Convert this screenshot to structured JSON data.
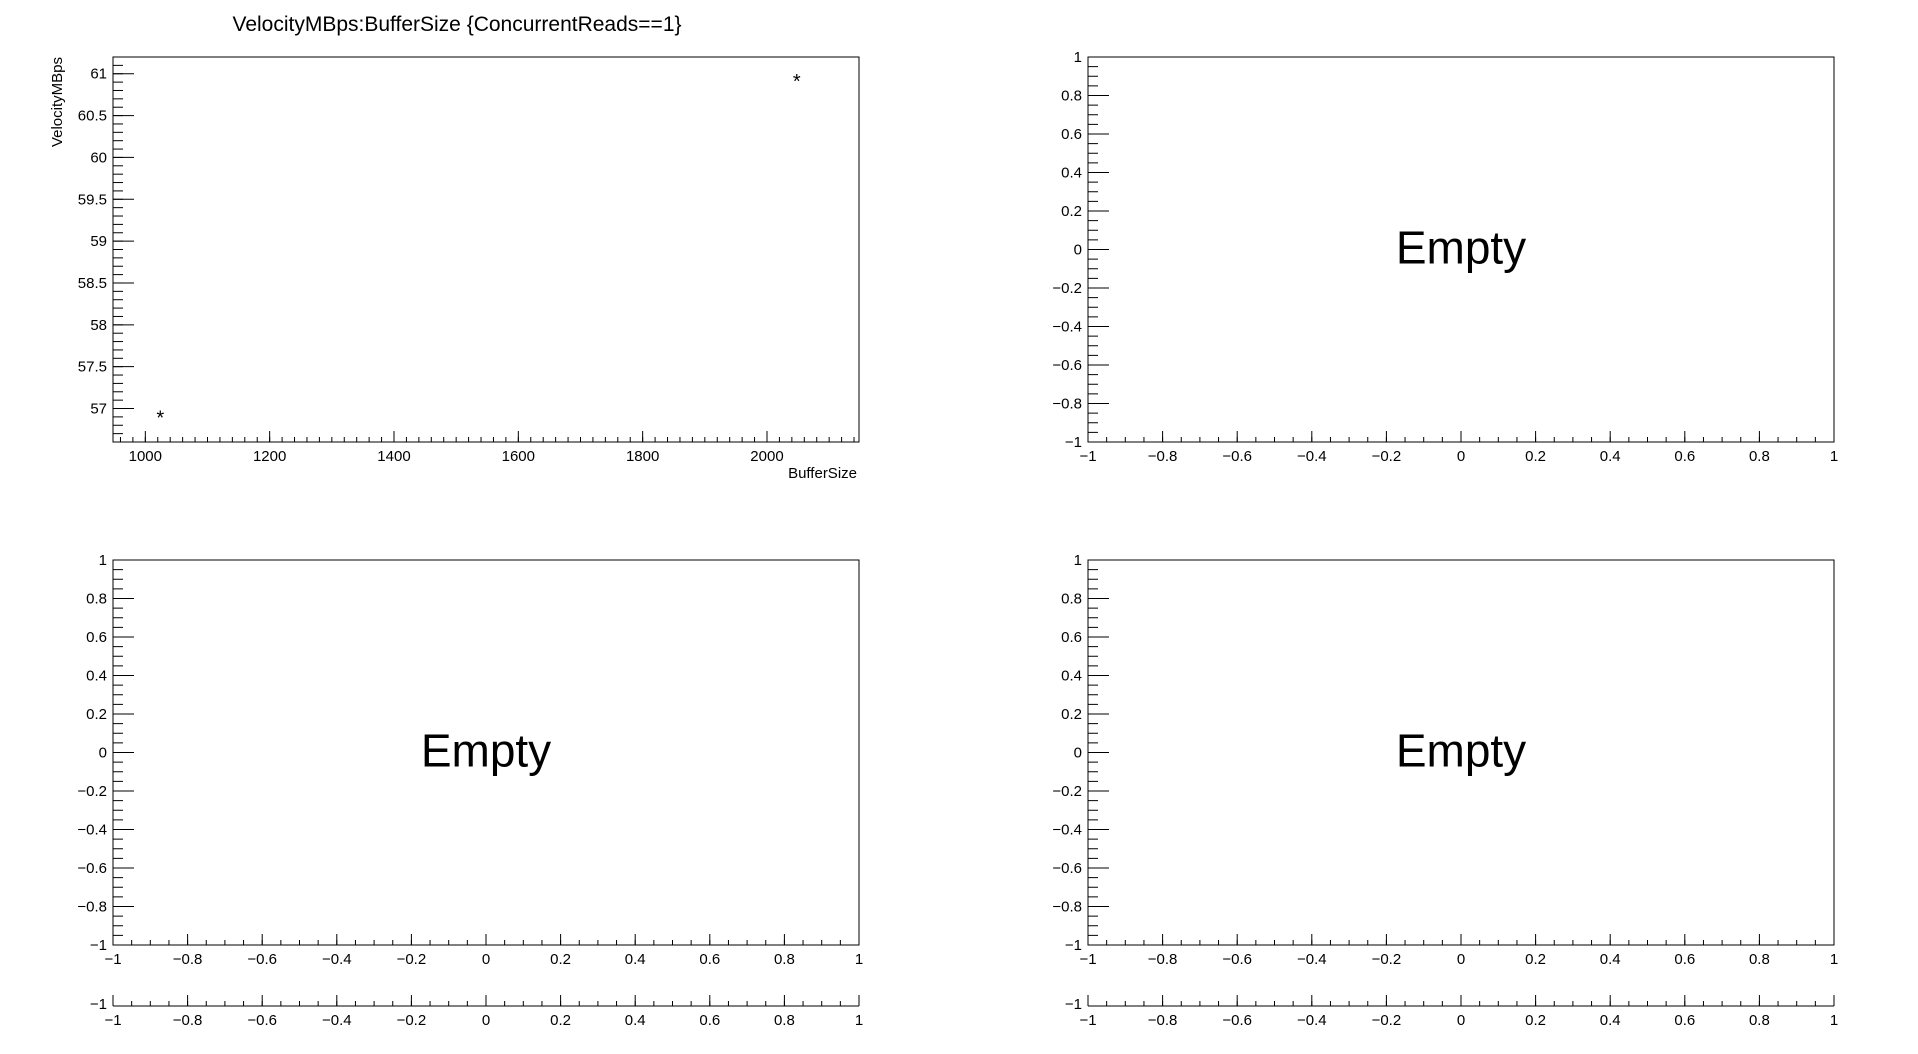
{
  "chart_data": [
    {
      "type": "scatter",
      "title": "VelocityMBps:BufferSize {ConcurrentReads==1}",
      "xlabel": "BufferSize",
      "ylabel": "VelocityMBps",
      "xlim": [
        948,
        2148
      ],
      "ylim": [
        56.6,
        61.2
      ],
      "x_ticks": [
        1000,
        1200,
        1400,
        1600,
        1800,
        2000
      ],
      "x_tick_labels": [
        "1000",
        "1200",
        "1400",
        "1600",
        "1800",
        "2000"
      ],
      "y_ticks": [
        57,
        57.5,
        58,
        58.5,
        59,
        59.5,
        60,
        60.5,
        61
      ],
      "y_tick_labels": [
        "57",
        "57.5",
        "58",
        "58.5",
        "59",
        "59.5",
        "60",
        "60.5",
        "61"
      ],
      "x_minor_step": 20,
      "y_minor_step": 0.1,
      "marker": "*",
      "points": [
        {
          "x": 1024,
          "y": 56.93
        },
        {
          "x": 2048,
          "y": 60.95
        }
      ],
      "empty_label": ""
    },
    {
      "type": "scatter",
      "title": "",
      "xlabel": "",
      "ylabel": "",
      "xlim": [
        -1,
        1
      ],
      "ylim": [
        -1,
        1
      ],
      "x_ticks": [
        -1,
        -0.8,
        -0.6,
        -0.4,
        -0.2,
        0,
        0.2,
        0.4,
        0.6,
        0.8,
        1
      ],
      "x_tick_labels": [
        "−1",
        "−0.8",
        "−0.6",
        "−0.4",
        "−0.2",
        "0",
        "0.2",
        "0.4",
        "0.6",
        "0.8",
        "1"
      ],
      "y_ticks": [
        -1,
        -0.8,
        -0.6,
        -0.4,
        -0.2,
        0,
        0.2,
        0.4,
        0.6,
        0.8,
        1
      ],
      "y_tick_labels": [
        "−1",
        "−0.8",
        "−0.6",
        "−0.4",
        "−0.2",
        "0",
        "0.2",
        "0.4",
        "0.6",
        "0.8",
        "1"
      ],
      "x_minor_step": 0.05,
      "y_minor_step": 0.05,
      "points": [],
      "empty_label": "Empty"
    },
    {
      "type": "scatter",
      "title": "",
      "xlabel": "",
      "ylabel": "",
      "xlim": [
        -1,
        1
      ],
      "ylim": [
        -1,
        1
      ],
      "x_ticks": [
        -1,
        -0.8,
        -0.6,
        -0.4,
        -0.2,
        0,
        0.2,
        0.4,
        0.6,
        0.8,
        1
      ],
      "x_tick_labels": [
        "−1",
        "−0.8",
        "−0.6",
        "−0.4",
        "−0.2",
        "0",
        "0.2",
        "0.4",
        "0.6",
        "0.8",
        "1"
      ],
      "y_ticks": [
        -1,
        -0.8,
        -0.6,
        -0.4,
        -0.2,
        0,
        0.2,
        0.4,
        0.6,
        0.8,
        1
      ],
      "y_tick_labels": [
        "−1",
        "−0.8",
        "−0.6",
        "−0.4",
        "−0.2",
        "0",
        "0.2",
        "0.4",
        "0.6",
        "0.8",
        "1"
      ],
      "x_minor_step": 0.05,
      "y_minor_step": 0.05,
      "points": [],
      "empty_label": "Empty"
    },
    {
      "type": "scatter",
      "title": "",
      "xlabel": "",
      "ylabel": "",
      "xlim": [
        -1,
        1
      ],
      "ylim": [
        -1,
        1
      ],
      "x_ticks": [
        -1,
        -0.8,
        -0.6,
        -0.4,
        -0.2,
        0,
        0.2,
        0.4,
        0.6,
        0.8,
        1
      ],
      "x_tick_labels": [
        "−1",
        "−0.8",
        "−0.6",
        "−0.4",
        "−0.2",
        "0",
        "0.2",
        "0.4",
        "0.6",
        "0.8",
        "1"
      ],
      "y_ticks": [
        -1,
        -0.8,
        -0.6,
        -0.4,
        -0.2,
        0,
        0.2,
        0.4,
        0.6,
        0.8,
        1
      ],
      "y_tick_labels": [
        "−1",
        "−0.8",
        "−0.6",
        "−0.4",
        "−0.2",
        "0",
        "0.2",
        "0.4",
        "0.6",
        "0.8",
        "1"
      ],
      "x_minor_step": 0.05,
      "y_minor_step": 0.05,
      "points": [],
      "empty_label": "Empty"
    }
  ],
  "extra_axes": [
    {
      "xlim": [
        -1,
        1
      ],
      "y_label": "−1",
      "x_ticks": [
        -1,
        -0.8,
        -0.6,
        -0.4,
        -0.2,
        0,
        0.2,
        0.4,
        0.6,
        0.8,
        1
      ],
      "x_tick_labels": [
        "−1",
        "−0.8",
        "−0.6",
        "−0.4",
        "−0.2",
        "0",
        "0.2",
        "0.4",
        "0.6",
        "0.8",
        "1"
      ],
      "x_minor_step": 0.05
    },
    {
      "xlim": [
        -1,
        1
      ],
      "y_label": "−1",
      "x_ticks": [
        -1,
        -0.8,
        -0.6,
        -0.4,
        -0.2,
        0,
        0.2,
        0.4,
        0.6,
        0.8,
        1
      ],
      "x_tick_labels": [
        "−1",
        "−0.8",
        "−0.6",
        "−0.4",
        "−0.2",
        "0",
        "0.2",
        "0.4",
        "0.6",
        "0.8",
        "1"
      ],
      "x_minor_step": 0.05
    }
  ]
}
